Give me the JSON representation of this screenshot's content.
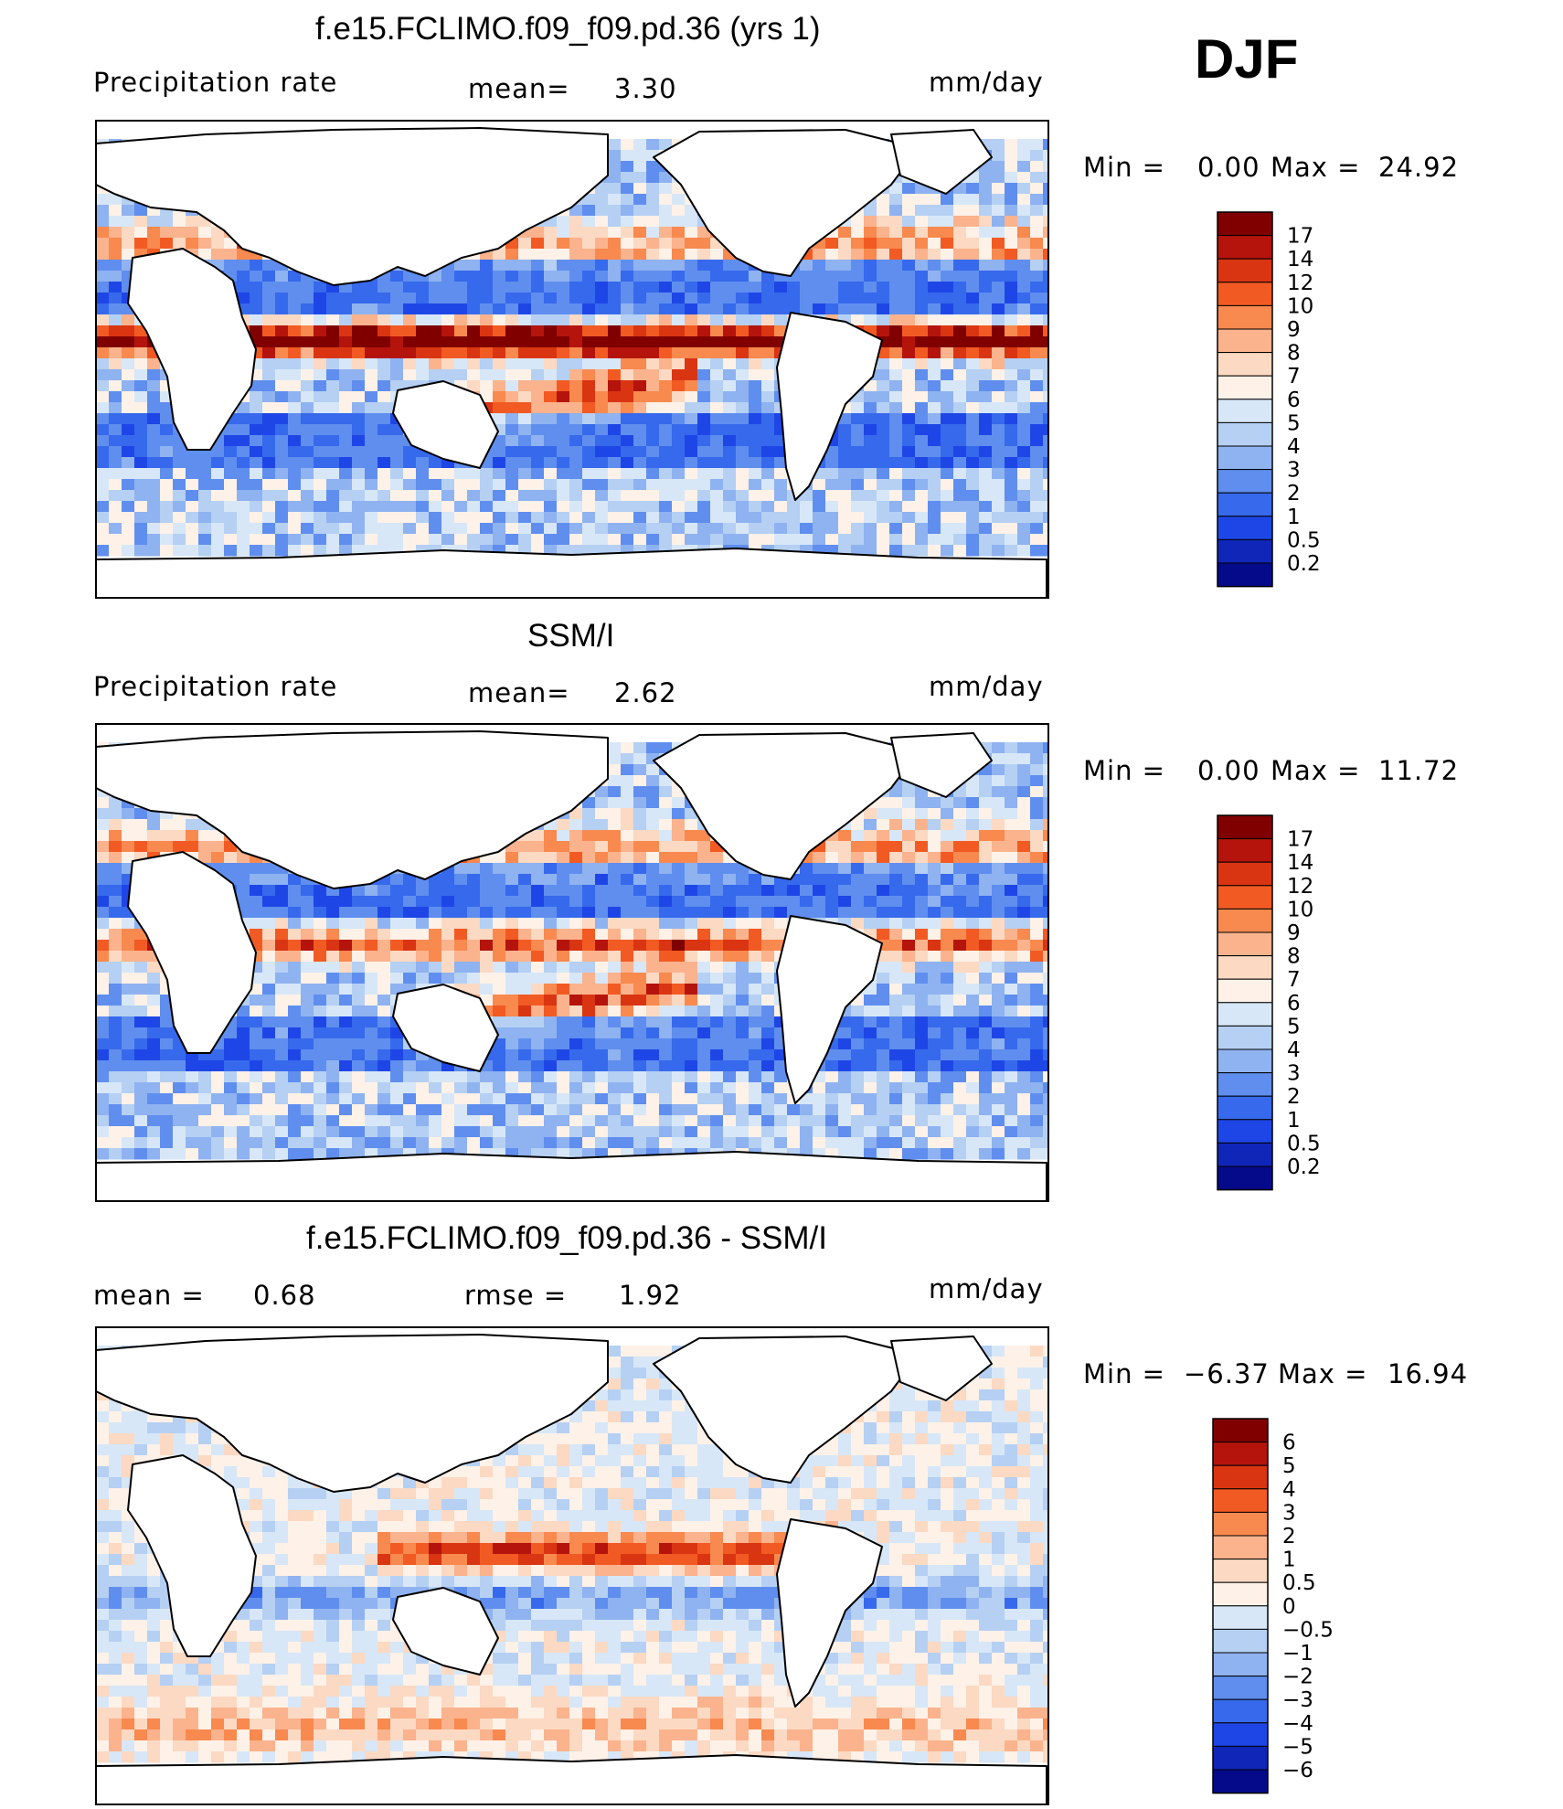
{
  "season": "DJF",
  "panels": [
    {
      "title": "f.e15.FCLIMO.f09_f09.pd.36 (yrs 1)",
      "left_label": "Precipitation rate",
      "mid_label": "mean=",
      "mid_value": "3.30",
      "right_label": "mm/day",
      "range_min_label": "Min =",
      "range_min": "0.00",
      "range_max_label": "Max =",
      "range_max": "24.92"
    },
    {
      "title": "SSM/I",
      "left_label": "Precipitation rate",
      "mid_label": "mean=",
      "mid_value": "2.62",
      "right_label": "mm/day",
      "range_min_label": "Min =",
      "range_min": "0.00",
      "range_max_label": "Max =",
      "range_max": "11.72"
    },
    {
      "title": "f.e15.FCLIMO.f09_f09.pd.36 - SSM/I",
      "left_label": "mean =",
      "left_value": "0.68",
      "mid_label": "rmse =",
      "mid_value": "1.92",
      "right_label": "mm/day",
      "range_min_label": "Min =",
      "range_min": "−6.37",
      "range_max_label": "Max =",
      "range_max": "16.94"
    }
  ],
  "chart_data": [
    {
      "type": "heatmap",
      "title": "f.e15.FCLIMO.f09_f09.pd.36 (yrs 1)",
      "variable": "Precipitation rate",
      "units": "mm/day",
      "mean": 3.3,
      "min": 0.0,
      "max": 24.92,
      "colorbar_levels": [
        "17",
        "14",
        "12",
        "10",
        "9",
        "8",
        "7",
        "6",
        "5",
        "4",
        "3",
        "2",
        "1",
        "0.5",
        "0.2"
      ],
      "colorbar_colors": [
        "#800000",
        "#b4140c",
        "#d93512",
        "#f25a23",
        "#f8894f",
        "#fab38d",
        "#fcd9c2",
        "#fdf1e8",
        "#d7e7f7",
        "#b5d0f3",
        "#8fb2f0",
        "#5f8eee",
        "#3769ec",
        "#1e46e6",
        "#0f26b8",
        "#050a8a"
      ],
      "ocean_field": "sequential"
    },
    {
      "type": "heatmap",
      "title": "SSM/I",
      "variable": "Precipitation rate",
      "units": "mm/day",
      "mean": 2.62,
      "min": 0.0,
      "max": 11.72,
      "colorbar_levels": [
        "17",
        "14",
        "12",
        "10",
        "9",
        "8",
        "7",
        "6",
        "5",
        "4",
        "3",
        "2",
        "1",
        "0.5",
        "0.2"
      ],
      "colorbar_colors": [
        "#800000",
        "#b4140c",
        "#d93512",
        "#f25a23",
        "#f8894f",
        "#fab38d",
        "#fcd9c2",
        "#fdf1e8",
        "#d7e7f7",
        "#b5d0f3",
        "#8fb2f0",
        "#5f8eee",
        "#3769ec",
        "#1e46e6",
        "#0f26b8",
        "#050a8a"
      ],
      "ocean_field": "sequential"
    },
    {
      "type": "heatmap",
      "title": "f.e15.FCLIMO.f09_f09.pd.36 - SSM/I",
      "units": "mm/day",
      "mean": 0.68,
      "rmse": 1.92,
      "min": -6.37,
      "max": 16.94,
      "colorbar_levels": [
        "6",
        "5",
        "4",
        "3",
        "2",
        "1",
        "0.5",
        "0",
        "−0.5",
        "−1",
        "−2",
        "−3",
        "−4",
        "−5",
        "−6"
      ],
      "colorbar_colors": [
        "#800000",
        "#b4140c",
        "#d93512",
        "#f25a23",
        "#f8894f",
        "#fab38d",
        "#fcd9c2",
        "#fdf1e8",
        "#d7e7f7",
        "#b5d0f3",
        "#8fb2f0",
        "#5f8eee",
        "#3769ec",
        "#1e46e6",
        "#0f26b8",
        "#050a8a"
      ],
      "ocean_field": "diverging"
    }
  ]
}
